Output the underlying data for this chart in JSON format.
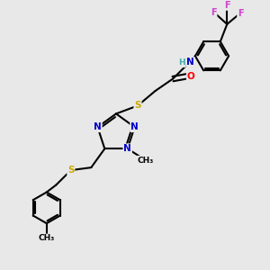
{
  "bg_color": "#e8e8e8",
  "atom_colors": {
    "C": "#000000",
    "N": "#0000cc",
    "S": "#ccaa00",
    "O": "#ff0000",
    "F": "#cc44cc",
    "H": "#44aaaa"
  },
  "bond_color": "#000000",
  "bond_width": 1.5,
  "figsize": [
    3.0,
    3.0
  ],
  "dpi": 100
}
